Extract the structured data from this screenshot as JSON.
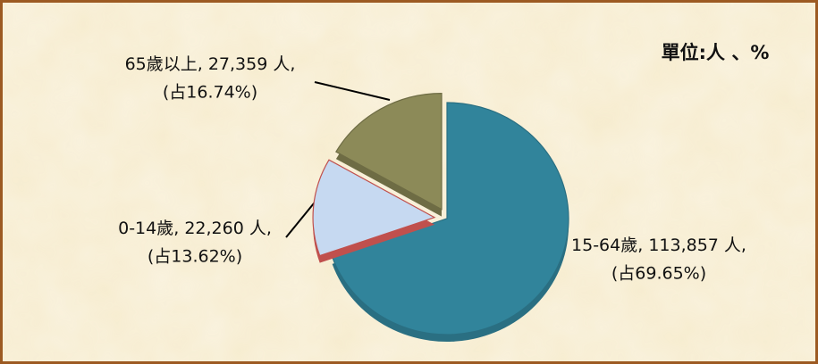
{
  "chart_data": {
    "type": "pie",
    "unit_label": "單位:人 、%",
    "categories": [
      "15-64歲,",
      "0-14歲,",
      "65歲以上,"
    ],
    "values": [
      113857,
      22260,
      27359
    ],
    "value_labels": [
      "113,857 人,",
      "22,260 人,",
      "27,359 人,"
    ],
    "percent_labels": [
      "(占69.65%)",
      "(占13.62%)",
      "(占16.74%)"
    ],
    "colors": [
      "#31849b",
      "#c6d9f1",
      "#8c8a58"
    ]
  }
}
